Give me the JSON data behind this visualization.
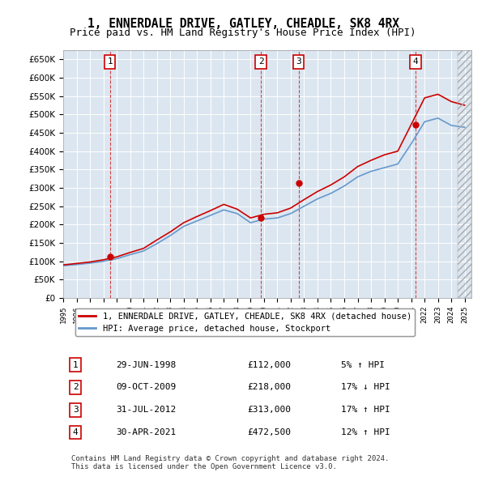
{
  "title": "1, ENNERDALE DRIVE, GATLEY, CHEADLE, SK8 4RX",
  "subtitle": "Price paid vs. HM Land Registry's House Price Index (HPI)",
  "ylabel": "",
  "ylim": [
    0,
    675000
  ],
  "yticks": [
    0,
    50000,
    100000,
    150000,
    200000,
    250000,
    300000,
    350000,
    400000,
    450000,
    500000,
    550000,
    600000,
    650000
  ],
  "xlim": [
    1995.0,
    2025.5
  ],
  "background_color": "#dce6f0",
  "plot_bg": "#dce6f0",
  "sale_color": "#cc0000",
  "hpi_color": "#6699cc",
  "sale_label": "1, ENNERDALE DRIVE, GATLEY, CHEADLE, SK8 4RX (detached house)",
  "hpi_label": "HPI: Average price, detached house, Stockport",
  "transactions": [
    {
      "num": 1,
      "date": 1998.49,
      "price": 112000,
      "label": "29-JUN-1998",
      "pct": "5%",
      "dir": "↑"
    },
    {
      "num": 2,
      "date": 2009.77,
      "price": 218000,
      "label": "09-OCT-2009",
      "pct": "17%",
      "dir": "↓"
    },
    {
      "num": 3,
      "date": 2012.58,
      "price": 313000,
      "label": "31-JUL-2012",
      "pct": "17%",
      "dir": "↑"
    },
    {
      "num": 4,
      "date": 2021.33,
      "price": 472500,
      "label": "30-APR-2021",
      "pct": "12%",
      "dir": "↑"
    }
  ],
  "footnote": "Contains HM Land Registry data © Crown copyright and database right 2024.\nThis data is licensed under the Open Government Licence v3.0.",
  "hpi_years": [
    1995,
    1996,
    1997,
    1998,
    1999,
    2000,
    2001,
    2002,
    2003,
    2004,
    2005,
    2006,
    2007,
    2008,
    2009,
    2010,
    2011,
    2012,
    2013,
    2014,
    2015,
    2016,
    2017,
    2018,
    2019,
    2020,
    2021,
    2022,
    2023,
    2024,
    2025
  ],
  "hpi_values": [
    88000,
    91000,
    95000,
    100000,
    107000,
    118000,
    128000,
    148000,
    170000,
    195000,
    210000,
    225000,
    240000,
    230000,
    205000,
    215000,
    218000,
    230000,
    250000,
    270000,
    285000,
    305000,
    330000,
    345000,
    355000,
    365000,
    420000,
    480000,
    490000,
    470000,
    465000
  ],
  "price_years": [
    1995,
    1996,
    1997,
    1998,
    1999,
    2000,
    2001,
    2002,
    2003,
    2004,
    2005,
    2006,
    2007,
    2008,
    2009,
    2010,
    2011,
    2012,
    2013,
    2014,
    2015,
    2016,
    2017,
    2018,
    2019,
    2020,
    2021,
    2022,
    2023,
    2024,
    2025
  ],
  "price_values": [
    90000,
    94000,
    98000,
    104000,
    112000,
    124000,
    135000,
    158000,
    180000,
    205000,
    222000,
    238000,
    255000,
    242000,
    218000,
    228000,
    232000,
    245000,
    268000,
    290000,
    308000,
    330000,
    358000,
    375000,
    390000,
    400000,
    472500,
    545000,
    555000,
    535000,
    525000
  ]
}
